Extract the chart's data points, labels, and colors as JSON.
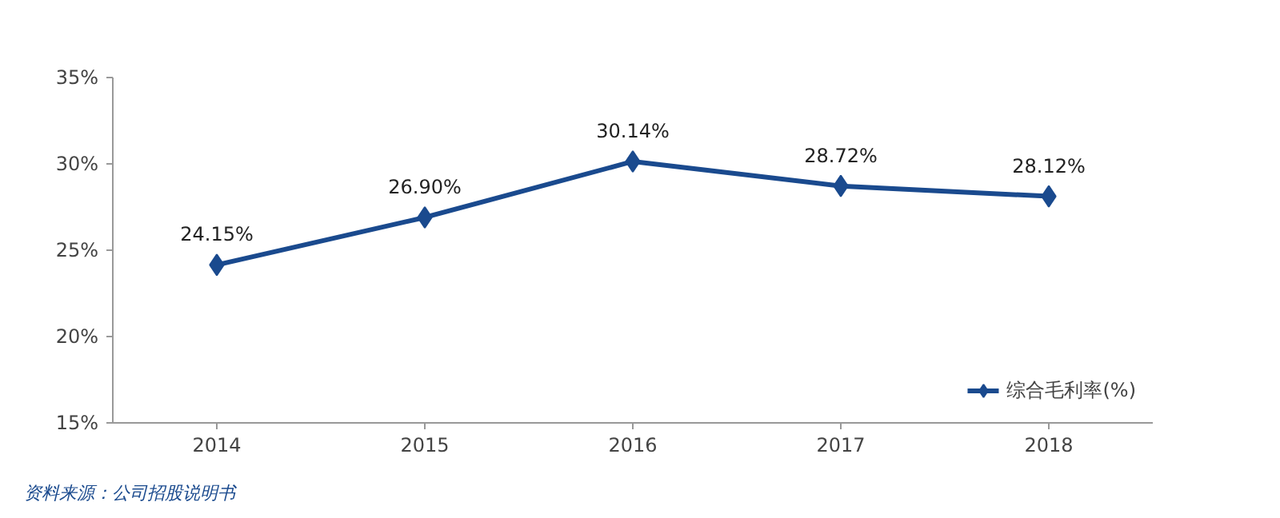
{
  "chart_data": {
    "type": "line",
    "categories": [
      "2014",
      "2015",
      "2016",
      "2017",
      "2018"
    ],
    "series": [
      {
        "name": "综合毛利率(%)",
        "color": "#1a4a8e",
        "values": [
          24.15,
          26.9,
          30.14,
          28.72,
          28.12
        ],
        "value_labels": [
          "24.15%",
          "26.90%",
          "30.14%",
          "28.72%",
          "28.12%"
        ]
      }
    ],
    "ylim": [
      15,
      35
    ],
    "yticks": [
      {
        "value": 15,
        "label": "15%"
      },
      {
        "value": 20,
        "label": "20%"
      },
      {
        "value": 25,
        "label": "25%"
      },
      {
        "value": 30,
        "label": "30%"
      },
      {
        "value": 35,
        "label": "35%"
      }
    ],
    "grid": false,
    "legend": "bottom right",
    "marker": "diamond",
    "line_style": "solid",
    "annotations": [
      "资料来源：公司招股说明书"
    ]
  }
}
